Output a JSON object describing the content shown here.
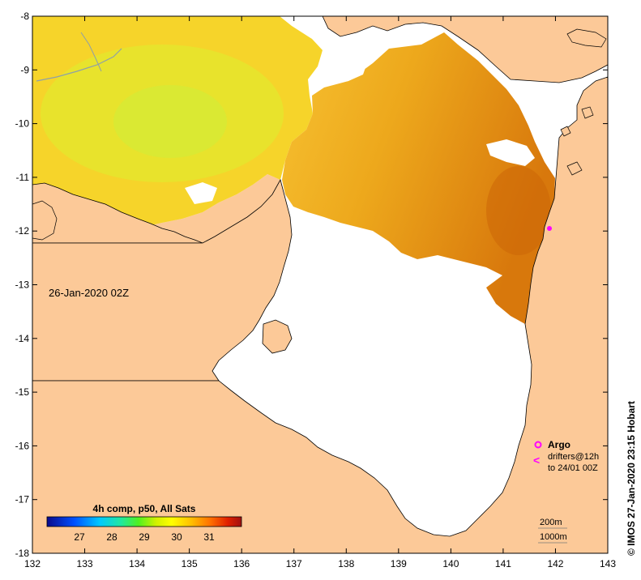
{
  "map": {
    "date_label": "26-Jan-2020 02Z",
    "credit": "© IMOS 27-Jan-2020 23:15 Hobart",
    "lon_range": [
      132,
      143
    ],
    "lat_range": [
      -18,
      -8
    ],
    "lon_ticks": [
      "132",
      "133",
      "134",
      "135",
      "136",
      "137",
      "138",
      "139",
      "140",
      "141",
      "142",
      "143"
    ],
    "lat_ticks": [
      "-8",
      "-9",
      "-10",
      "-11",
      "-12",
      "-13",
      "-14",
      "-15",
      "-16",
      "-17",
      "-18"
    ],
    "colors": {
      "land": "#fcc998",
      "no_data": "#ffffff",
      "coast": "#000000",
      "river": "#8ea0a8",
      "argo": "#ff00ff"
    }
  },
  "legend": {
    "argo_label": "Argo",
    "drifters_label": "drifters@12h",
    "drifters_range": "to 24/01 00Z",
    "depth_200": "200m",
    "depth_1000": "1000m"
  },
  "colorbar": {
    "title": "4h comp, p50, All Sats",
    "tick_labels": [
      "27",
      "28",
      "29",
      "30",
      "31"
    ],
    "min": 26,
    "max": 32,
    "tick_values": [
      27,
      28,
      29,
      30,
      31
    ]
  }
}
